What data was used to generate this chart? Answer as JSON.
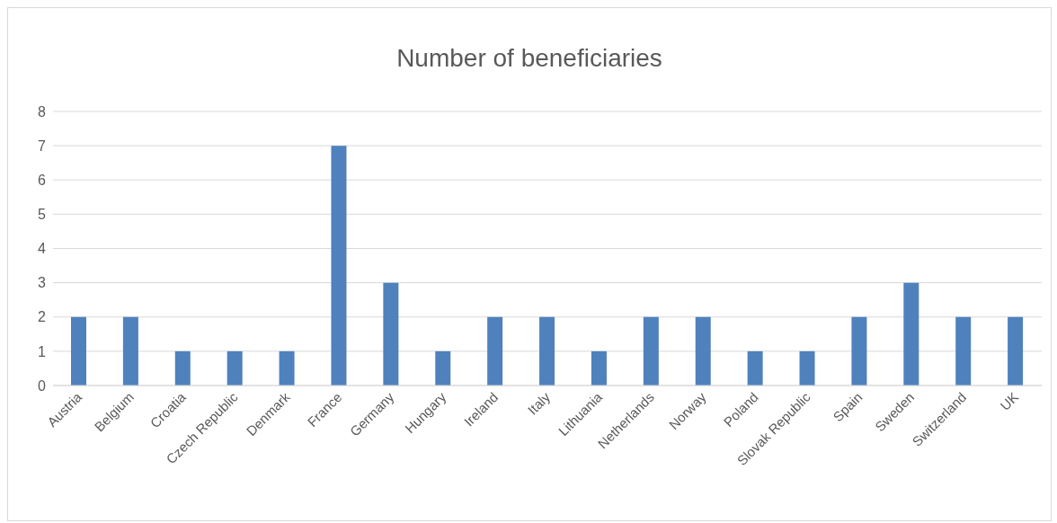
{
  "chart_data": {
    "type": "bar",
    "title": "Number of beneficiaries",
    "categories": [
      "Austria",
      "Belgium",
      "Croatia",
      "Czech Republic",
      "Denmark",
      "France",
      "Germany",
      "Hungary",
      "Ireland",
      "Italy",
      "Lithuania",
      "Netherlands",
      "Norway",
      "Poland",
      "Slovak Republic",
      "Spain",
      "Sweden",
      "Switzerland",
      "UK"
    ],
    "values": [
      2,
      2,
      1,
      1,
      1,
      7,
      3,
      1,
      2,
      2,
      1,
      2,
      2,
      1,
      1,
      2,
      3,
      2,
      2
    ],
    "color": "#4f81bd",
    "ylim": [
      0,
      8
    ],
    "yticks": [
      0,
      1,
      2,
      3,
      4,
      5,
      6,
      7,
      8
    ],
    "grid": "y"
  }
}
